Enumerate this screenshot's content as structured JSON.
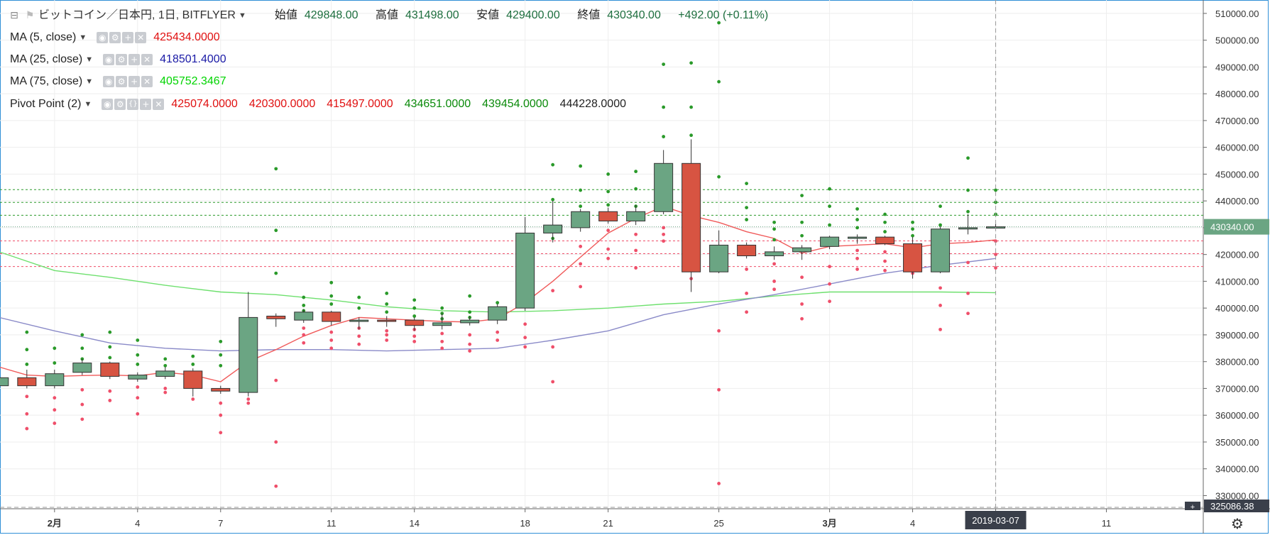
{
  "header": {
    "symbol_title": "ビットコイン／日本円, 1日, BITFLYER",
    "open_label": "始値",
    "open": "429848.00",
    "high_label": "高値",
    "high": "431498.00",
    "low_label": "安値",
    "low": "429400.00",
    "close_label": "終値",
    "close": "430340.00",
    "change": "+492.00 (+0.11%)"
  },
  "indicators": [
    {
      "label": "MA (5, close)",
      "values": [
        "425434.0000"
      ],
      "color": "#e01010"
    },
    {
      "label": "MA (25, close)",
      "values": [
        "418501.4000"
      ],
      "color": "#1a1aa6"
    },
    {
      "label": "MA (75, close)",
      "values": [
        "405752.3467"
      ],
      "color": "#00d400"
    },
    {
      "label": "Pivot Point (2)",
      "values": [
        "425074.0000",
        "420300.0000",
        "415497.0000",
        "434651.0000",
        "439454.0000",
        "444228.0000"
      ],
      "colors": [
        "#e01010",
        "#e01010",
        "#e01010",
        "#0a8a0a",
        "#0a8a0a",
        "#222222"
      ]
    }
  ],
  "colors": {
    "up": "#6ba583",
    "down": "#d75442",
    "ma5": "#f05a5a",
    "ma25": "#8a8ac8",
    "ma75": "#6ee06e",
    "pivot_r": "#2a9a2a",
    "pivot_s": "#ef4f6a",
    "grid": "#eeeeee",
    "bg": "#ffffff"
  },
  "chart_data": {
    "type": "candlestick",
    "y_ticks": [
      "330000.00",
      "340000.00",
      "350000.00",
      "360000.00",
      "370000.00",
      "380000.00",
      "390000.00",
      "400000.00",
      "410000.00",
      "420000.00",
      "430000.00",
      "440000.00",
      "450000.00",
      "460000.00",
      "470000.00",
      "480000.00",
      "490000.00",
      "500000.00",
      "510000.00"
    ],
    "ylim": [
      325086.38,
      515000
    ],
    "x_labels": [
      {
        "index": 2,
        "text": "2月"
      },
      {
        "index": 5,
        "text": "4"
      },
      {
        "index": 8,
        "text": "7"
      },
      {
        "index": 12,
        "text": "11"
      },
      {
        "index": 15,
        "text": "14"
      },
      {
        "index": 19,
        "text": "18"
      },
      {
        "index": 22,
        "text": "21"
      },
      {
        "index": 26,
        "text": "25"
      },
      {
        "index": 30,
        "text": "3月"
      },
      {
        "index": 33,
        "text": "4"
      },
      {
        "index": 36,
        "text": "7"
      },
      {
        "index": 40,
        "text": "11"
      }
    ],
    "x_range": [
      0.03,
      43.5
    ],
    "current_price": "430340.00",
    "axis_bottom_value": "325086.38",
    "crosshair_index": 36,
    "crosshair_date": "2019-03-07",
    "candles": [
      {
        "i": 0,
        "o": 371000,
        "h": 375500,
        "l": 370500,
        "c": 374000
      },
      {
        "i": 1,
        "o": 374000,
        "h": 377000,
        "l": 370000,
        "c": 371000
      },
      {
        "i": 2,
        "o": 371000,
        "h": 377000,
        "l": 370000,
        "c": 375500
      },
      {
        "i": 3,
        "o": 376000,
        "h": 381000,
        "l": 375000,
        "c": 379500
      },
      {
        "i": 4,
        "o": 379500,
        "h": 380000,
        "l": 373500,
        "c": 374500
      },
      {
        "i": 5,
        "o": 373500,
        "h": 376000,
        "l": 372500,
        "c": 375000
      },
      {
        "i": 6,
        "o": 374500,
        "h": 378000,
        "l": 373500,
        "c": 376500
      },
      {
        "i": 7,
        "o": 376500,
        "h": 377500,
        "l": 367000,
        "c": 370000
      },
      {
        "i": 8,
        "o": 370000,
        "h": 371000,
        "l": 368000,
        "c": 369000
      },
      {
        "i": 9,
        "o": 368500,
        "h": 406000,
        "l": 367000,
        "c": 396500
      },
      {
        "i": 10,
        "o": 397000,
        "h": 398000,
        "l": 393000,
        "c": 396000
      },
      {
        "i": 11,
        "o": 395500,
        "h": 399500,
        "l": 394500,
        "c": 398500
      },
      {
        "i": 12,
        "o": 398500,
        "h": 399000,
        "l": 393500,
        "c": 395000
      },
      {
        "i": 13,
        "o": 395000,
        "h": 396500,
        "l": 392000,
        "c": 395500
      },
      {
        "i": 14,
        "o": 395500,
        "h": 397000,
        "l": 393000,
        "c": 395000
      },
      {
        "i": 15,
        "o": 395500,
        "h": 396500,
        "l": 391500,
        "c": 393500
      },
      {
        "i": 16,
        "o": 393500,
        "h": 398000,
        "l": 392000,
        "c": 394500
      },
      {
        "i": 17,
        "o": 394500,
        "h": 397000,
        "l": 393500,
        "c": 395500
      },
      {
        "i": 18,
        "o": 395500,
        "h": 401500,
        "l": 394000,
        "c": 400500
      },
      {
        "i": 19,
        "o": 400000,
        "h": 434000,
        "l": 399000,
        "c": 428000
      },
      {
        "i": 20,
        "o": 428000,
        "h": 440000,
        "l": 424500,
        "c": 431000
      },
      {
        "i": 21,
        "o": 430000,
        "h": 437000,
        "l": 428500,
        "c": 436000
      },
      {
        "i": 22,
        "o": 436000,
        "h": 437500,
        "l": 431500,
        "c": 432500
      },
      {
        "i": 23,
        "o": 432500,
        "h": 438500,
        "l": 431000,
        "c": 436000
      },
      {
        "i": 24,
        "o": 436000,
        "h": 459000,
        "l": 435000,
        "c": 454000
      },
      {
        "i": 25,
        "o": 454000,
        "h": 463000,
        "l": 406000,
        "c": 413500
      },
      {
        "i": 26,
        "o": 413500,
        "h": 429000,
        "l": 413000,
        "c": 423500
      },
      {
        "i": 27,
        "o": 423500,
        "h": 424500,
        "l": 418500,
        "c": 419500
      },
      {
        "i": 28,
        "o": 419500,
        "h": 423000,
        "l": 418000,
        "c": 421000
      },
      {
        "i": 29,
        "o": 421000,
        "h": 423500,
        "l": 418000,
        "c": 422500
      },
      {
        "i": 30,
        "o": 423000,
        "h": 427000,
        "l": 422000,
        "c": 426500
      },
      {
        "i": 31,
        "o": 426000,
        "h": 427500,
        "l": 424000,
        "c": 426500
      },
      {
        "i": 32,
        "o": 426500,
        "h": 427000,
        "l": 423500,
        "c": 424000
      },
      {
        "i": 33,
        "o": 424000,
        "h": 426500,
        "l": 411000,
        "c": 413500
      },
      {
        "i": 34,
        "o": 413500,
        "h": 430500,
        "l": 413000,
        "c": 429500
      },
      {
        "i": 35,
        "o": 429500,
        "h": 435000,
        "l": 427500,
        "c": 430000
      },
      {
        "i": 36,
        "o": 429848,
        "h": 431498,
        "l": 429400,
        "c": 430340
      }
    ],
    "ma5": [
      [
        0,
        378000
      ],
      [
        1,
        375000
      ],
      [
        2,
        374500
      ],
      [
        3,
        374800
      ],
      [
        4,
        375000
      ],
      [
        5,
        374700
      ],
      [
        6,
        376000
      ],
      [
        7,
        375000
      ],
      [
        8,
        372500
      ],
      [
        9,
        380000
      ],
      [
        10,
        384500
      ],
      [
        11,
        389500
      ],
      [
        12,
        393500
      ],
      [
        13,
        396500
      ],
      [
        14,
        396000
      ],
      [
        15,
        395500
      ],
      [
        16,
        395000
      ],
      [
        17,
        394800
      ],
      [
        18,
        396000
      ],
      [
        19,
        402000
      ],
      [
        20,
        410000
      ],
      [
        21,
        419000
      ],
      [
        22,
        428000
      ],
      [
        23,
        433500
      ],
      [
        24,
        438000
      ],
      [
        25,
        434500
      ],
      [
        26,
        432000
      ],
      [
        27,
        428500
      ],
      [
        28,
        426000
      ],
      [
        29,
        420500
      ],
      [
        30,
        423000
      ],
      [
        31,
        423500
      ],
      [
        32,
        424000
      ],
      [
        33,
        422500
      ],
      [
        34,
        424000
      ],
      [
        35,
        424500
      ],
      [
        36,
        425434
      ]
    ],
    "ma25": [
      [
        0,
        396500
      ],
      [
        2,
        391500
      ],
      [
        4,
        387000
      ],
      [
        6,
        385000
      ],
      [
        8,
        384000
      ],
      [
        10,
        384500
      ],
      [
        12,
        384500
      ],
      [
        14,
        384000
      ],
      [
        16,
        384500
      ],
      [
        18,
        385000
      ],
      [
        20,
        388000
      ],
      [
        22,
        391500
      ],
      [
        24,
        397500
      ],
      [
        26,
        401500
      ],
      [
        28,
        405000
      ],
      [
        30,
        409000
      ],
      [
        32,
        413000
      ],
      [
        34,
        416000
      ],
      [
        36,
        418501
      ]
    ],
    "ma75": [
      [
        0,
        421000
      ],
      [
        2,
        414000
      ],
      [
        4,
        411500
      ],
      [
        6,
        408500
      ],
      [
        8,
        406000
      ],
      [
        10,
        405000
      ],
      [
        12,
        403000
      ],
      [
        14,
        400500
      ],
      [
        16,
        399000
      ],
      [
        18,
        398500
      ],
      [
        20,
        399000
      ],
      [
        22,
        400000
      ],
      [
        24,
        401500
      ],
      [
        26,
        402500
      ],
      [
        28,
        404500
      ],
      [
        30,
        406000
      ],
      [
        32,
        406000
      ],
      [
        34,
        406000
      ],
      [
        36,
        405752
      ]
    ],
    "pivot_levels": {
      "support": [
        425074,
        420300,
        415497
      ],
      "resistance": [
        434651,
        439454,
        444228
      ]
    },
    "pivot_dots_resistance": [
      [
        1,
        379000
      ],
      [
        1,
        384500
      ],
      [
        1,
        391000
      ],
      [
        2,
        379500
      ],
      [
        2,
        385000
      ],
      [
        3,
        381000
      ],
      [
        3,
        385000
      ],
      [
        3,
        390000
      ],
      [
        4,
        381500
      ],
      [
        4,
        385500
      ],
      [
        4,
        391000
      ],
      [
        5,
        379000
      ],
      [
        5,
        382500
      ],
      [
        5,
        388000
      ],
      [
        6,
        378500
      ],
      [
        6,
        381000
      ],
      [
        7,
        379000
      ],
      [
        7,
        382000
      ],
      [
        8,
        378500
      ],
      [
        8,
        382500
      ],
      [
        8,
        387500
      ],
      [
        9,
        384500
      ],
      [
        10,
        413000
      ],
      [
        10,
        429000
      ],
      [
        10,
        452000
      ],
      [
        11,
        399000
      ],
      [
        11,
        401000
      ],
      [
        11,
        404000
      ],
      [
        12,
        401500
      ],
      [
        12,
        404500
      ],
      [
        12,
        409500
      ],
      [
        13,
        400000
      ],
      [
        13,
        404000
      ],
      [
        14,
        398500
      ],
      [
        14,
        401500
      ],
      [
        14,
        405500
      ],
      [
        15,
        397000
      ],
      [
        15,
        400000
      ],
      [
        15,
        403000
      ],
      [
        16,
        396000
      ],
      [
        16,
        398000
      ],
      [
        16,
        400000
      ],
      [
        17,
        396500
      ],
      [
        17,
        398500
      ],
      [
        17,
        404500
      ],
      [
        18,
        397000
      ],
      [
        18,
        399000
      ],
      [
        18,
        402000
      ],
      [
        20,
        426000
      ],
      [
        20,
        440500
      ],
      [
        20,
        453500
      ],
      [
        21,
        438000
      ],
      [
        21,
        444000
      ],
      [
        21,
        453000
      ],
      [
        22,
        438500
      ],
      [
        22,
        443500
      ],
      [
        22,
        450000
      ],
      [
        23,
        438000
      ],
      [
        23,
        444500
      ],
      [
        23,
        451000
      ],
      [
        24,
        464000
      ],
      [
        24,
        475000
      ],
      [
        24,
        491000
      ],
      [
        25,
        464500
      ],
      [
        25,
        475000
      ],
      [
        25,
        491500
      ],
      [
        26,
        449000
      ],
      [
        26,
        484500
      ],
      [
        26,
        506500
      ],
      [
        27,
        433000
      ],
      [
        27,
        437500
      ],
      [
        27,
        446500
      ],
      [
        28,
        425500
      ],
      [
        28,
        429500
      ],
      [
        28,
        432000
      ],
      [
        29,
        427000
      ],
      [
        29,
        432000
      ],
      [
        29,
        442000
      ],
      [
        30,
        431000
      ],
      [
        30,
        438000
      ],
      [
        30,
        444500
      ],
      [
        31,
        430000
      ],
      [
        31,
        433000
      ],
      [
        31,
        437000
      ],
      [
        32,
        428500
      ],
      [
        32,
        432000
      ],
      [
        32,
        435000
      ],
      [
        33,
        427000
      ],
      [
        33,
        429500
      ],
      [
        33,
        432000
      ],
      [
        34,
        431000
      ],
      [
        34,
        438000
      ],
      [
        35,
        436000
      ],
      [
        35,
        444000
      ],
      [
        35,
        456000
      ],
      [
        36,
        435000
      ],
      [
        36,
        439500
      ],
      [
        36,
        444000
      ]
    ],
    "pivot_dots_support": [
      [
        1,
        355000
      ],
      [
        1,
        360500
      ],
      [
        1,
        367000
      ],
      [
        2,
        357000
      ],
      [
        2,
        362000
      ],
      [
        2,
        366500
      ],
      [
        3,
        358500
      ],
      [
        3,
        364000
      ],
      [
        3,
        369500
      ],
      [
        4,
        365500
      ],
      [
        4,
        369000
      ],
      [
        5,
        360500
      ],
      [
        5,
        366500
      ],
      [
        5,
        370500
      ],
      [
        6,
        368500
      ],
      [
        6,
        370000
      ],
      [
        7,
        366000
      ],
      [
        7,
        370500
      ],
      [
        8,
        353500
      ],
      [
        8,
        360000
      ],
      [
        8,
        364500
      ],
      [
        9,
        364500
      ],
      [
        9,
        366000
      ],
      [
        10,
        333500
      ],
      [
        10,
        350000
      ],
      [
        10,
        373000
      ],
      [
        11,
        387000
      ],
      [
        11,
        390000
      ],
      [
        11,
        392500
      ],
      [
        12,
        385000
      ],
      [
        12,
        388000
      ],
      [
        12,
        391000
      ],
      [
        13,
        386500
      ],
      [
        13,
        389500
      ],
      [
        13,
        392500
      ],
      [
        14,
        388000
      ],
      [
        14,
        390000
      ],
      [
        14,
        391500
      ],
      [
        15,
        387500
      ],
      [
        15,
        389500
      ],
      [
        15,
        392000
      ],
      [
        16,
        385000
      ],
      [
        16,
        387500
      ],
      [
        16,
        390500
      ],
      [
        17,
        384000
      ],
      [
        17,
        386500
      ],
      [
        17,
        390000
      ],
      [
        18,
        388000
      ],
      [
        18,
        391000
      ],
      [
        19,
        385500
      ],
      [
        19,
        389000
      ],
      [
        19,
        394000
      ],
      [
        20,
        372500
      ],
      [
        20,
        385500
      ],
      [
        20,
        406500
      ],
      [
        21,
        408000
      ],
      [
        21,
        416500
      ],
      [
        21,
        423000
      ],
      [
        22,
        418500
      ],
      [
        22,
        422000
      ],
      [
        22,
        429000
      ],
      [
        23,
        415000
      ],
      [
        23,
        421500
      ],
      [
        23,
        427500
      ],
      [
        24,
        425000
      ],
      [
        24,
        427500
      ],
      [
        24,
        430000
      ],
      [
        25,
        411000
      ],
      [
        25,
        420000
      ],
      [
        25,
        426000
      ],
      [
        26,
        334500
      ],
      [
        26,
        369500
      ],
      [
        26,
        391500
      ],
      [
        27,
        398500
      ],
      [
        27,
        405500
      ],
      [
        27,
        414500
      ],
      [
        28,
        407000
      ],
      [
        28,
        410000
      ],
      [
        28,
        416500
      ],
      [
        29,
        396000
      ],
      [
        29,
        401500
      ],
      [
        29,
        411500
      ],
      [
        30,
        402500
      ],
      [
        30,
        409000
      ],
      [
        30,
        415500
      ],
      [
        31,
        414500
      ],
      [
        31,
        418500
      ],
      [
        31,
        421500
      ],
      [
        32,
        414000
      ],
      [
        32,
        417500
      ],
      [
        32,
        421000
      ],
      [
        33,
        413000
      ],
      [
        33,
        417500
      ],
      [
        33,
        421500
      ],
      [
        34,
        392000
      ],
      [
        34,
        401000
      ],
      [
        34,
        407500
      ],
      [
        35,
        398000
      ],
      [
        35,
        405500
      ],
      [
        35,
        417000
      ],
      [
        36,
        415000
      ],
      [
        36,
        420000
      ],
      [
        36,
        425000
      ]
    ]
  }
}
